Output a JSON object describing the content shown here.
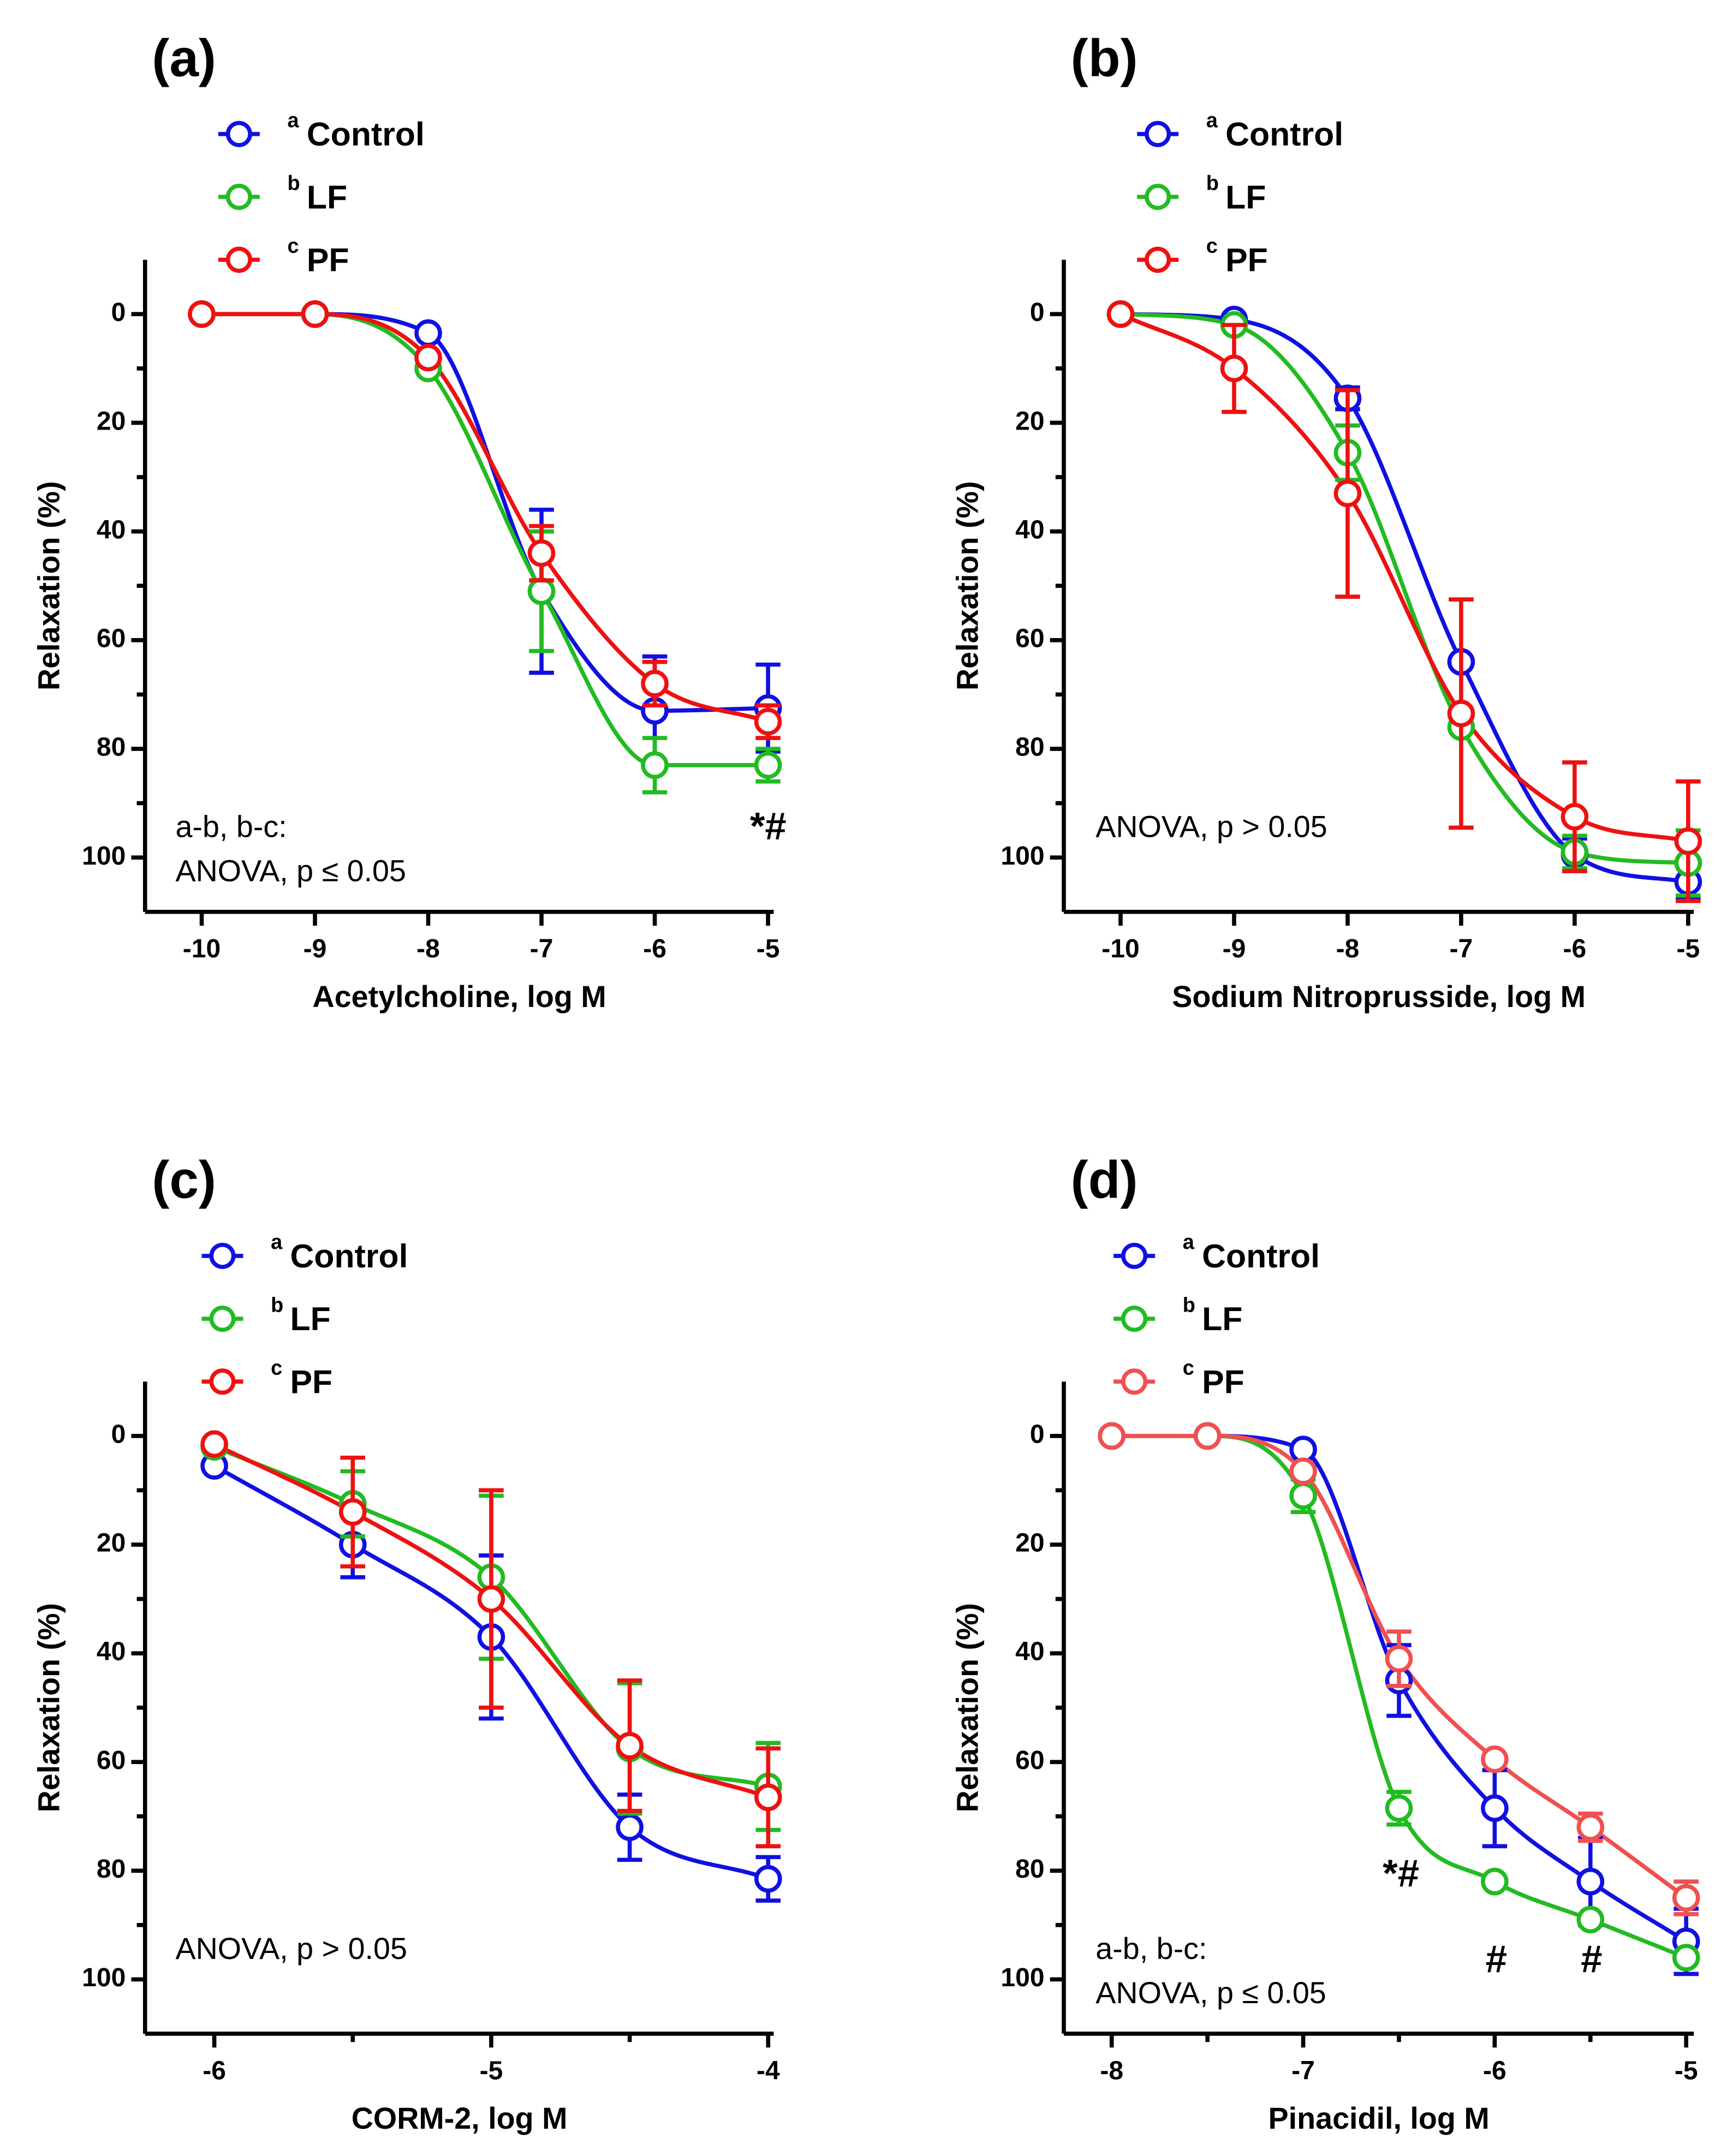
{
  "chart_data": [
    {
      "type": "line",
      "panel_label": "(a)",
      "x_label": "Acetylcholine, log M",
      "y_label": "Relaxation (%)",
      "x": [
        -10,
        -9,
        -8,
        -7,
        -6,
        -5
      ],
      "xlim": [
        -10.5,
        -4.95
      ],
      "xticks": [
        -10,
        -9,
        -8,
        -7,
        -6,
        -5
      ],
      "xminor_ticks": [],
      "ylim": [
        -10,
        110
      ],
      "y_inverted": true,
      "yticks": [
        0,
        20,
        40,
        60,
        80,
        100
      ],
      "yminor_ticks": [
        10,
        30,
        50,
        70,
        90
      ],
      "series": [
        {
          "tag": "a",
          "name": "Control",
          "color": "#1010e0",
          "values": [
            0,
            0,
            3.5,
            51,
            73,
            72.5
          ],
          "errors": [
            null,
            null,
            null,
            15,
            10,
            8
          ]
        },
        {
          "tag": "b",
          "name": "LF",
          "color": "#22bb22",
          "values": [
            0,
            0,
            10,
            51,
            83,
            83
          ],
          "errors": [
            null,
            null,
            null,
            11,
            5,
            3
          ]
        },
        {
          "tag": "c",
          "name": "PF",
          "color": "#ee1111",
          "values": [
            0,
            0,
            8,
            44,
            68,
            75
          ],
          "errors": [
            null,
            null,
            null,
            5,
            4,
            3
          ]
        }
      ],
      "annotations": [
        "a-b, b-c:",
        "ANOVA, p ≤ 0.05",
        "*#"
      ]
    },
    {
      "type": "line",
      "panel_label": "(b)",
      "x_label": "Sodium Nitroprusside, log M",
      "y_label": "Relaxation (%)",
      "x": [
        -10,
        -9,
        -8,
        -7,
        -6,
        -5
      ],
      "xlim": [
        -10.5,
        -4.95
      ],
      "xticks": [
        -10,
        -9,
        -8,
        -7,
        -6,
        -5
      ],
      "xminor_ticks": [],
      "ylim": [
        -10,
        110
      ],
      "y_inverted": true,
      "yticks": [
        0,
        20,
        40,
        60,
        80,
        100
      ],
      "yminor_ticks": [
        10,
        30,
        50,
        70,
        90
      ],
      "series": [
        {
          "tag": "a",
          "name": "Control",
          "color": "#1010e0",
          "values": [
            0,
            1,
            15.5,
            64,
            99.5,
            104.5
          ],
          "errors": [
            null,
            null,
            2,
            null,
            3,
            3
          ]
        },
        {
          "tag": "b",
          "name": "LF",
          "color": "#22bb22",
          "values": [
            0,
            2,
            25.5,
            76,
            99,
            101
          ],
          "errors": [
            null,
            null,
            5,
            null,
            3,
            6
          ]
        },
        {
          "tag": "c",
          "name": "PF",
          "color": "#ee1111",
          "values": [
            0,
            10,
            33,
            73.5,
            92.5,
            97
          ],
          "errors": [
            null,
            8,
            19,
            21,
            10,
            11
          ]
        }
      ],
      "annotations": [
        "ANOVA, p > 0.05"
      ]
    },
    {
      "type": "line",
      "panel_label": "(c)",
      "x_label": "CORM-2, log M",
      "y_label": "Relaxation (%)",
      "x": [
        -6,
        -5.5,
        -5,
        -4.5,
        -4
      ],
      "xlim": [
        -6.25,
        -3.98
      ],
      "xticks": [
        -6,
        -5,
        -4
      ],
      "xminor_ticks": [
        -5.5,
        -4.5
      ],
      "ylim": [
        -10,
        110
      ],
      "y_inverted": true,
      "yticks": [
        0,
        20,
        40,
        60,
        80,
        100
      ],
      "yminor_ticks": [
        10,
        30,
        50,
        70,
        90
      ],
      "series": [
        {
          "tag": "a",
          "name": "Control",
          "color": "#1010e0",
          "values": [
            5.5,
            20,
            37,
            72,
            81.5
          ],
          "errors": [
            null,
            6,
            15,
            6,
            4
          ]
        },
        {
          "tag": "b",
          "name": "LF",
          "color": "#22bb22",
          "values": [
            2,
            12.5,
            26,
            57.5,
            64.5
          ],
          "errors": [
            null,
            6,
            15,
            12,
            8
          ]
        },
        {
          "tag": "c",
          "name": "PF",
          "color": "#ee1111",
          "values": [
            1.5,
            14,
            30,
            57,
            66.5
          ],
          "errors": [
            null,
            10,
            20,
            12,
            9
          ]
        }
      ],
      "annotations": [
        "ANOVA, p > 0.05"
      ]
    },
    {
      "type": "line",
      "panel_label": "(d)",
      "x_label": "Pinacidil, log M",
      "y_label": "Relaxation (%)",
      "x": [
        -8,
        -7.5,
        -7,
        -6.5,
        -6,
        -5.5,
        -5
      ],
      "xlim": [
        -8.25,
        -4.96
      ],
      "xticks": [
        -8,
        -7,
        -6,
        -5
      ],
      "xminor_ticks": [
        -7.5,
        -6.5,
        -5.5
      ],
      "ylim": [
        -10,
        110
      ],
      "y_inverted": true,
      "yticks": [
        0,
        20,
        40,
        60,
        80,
        100
      ],
      "yminor_ticks": [
        10,
        30,
        50,
        70,
        90
      ],
      "series": [
        {
          "tag": "a",
          "name": "Control",
          "color": "#1010e0",
          "values": [
            0,
            0,
            2.5,
            45,
            68.5,
            82,
            93
          ],
          "errors": [
            null,
            null,
            null,
            6.5,
            7,
            8,
            6
          ]
        },
        {
          "tag": "b",
          "name": "LF",
          "color": "#22bb22",
          "values": [
            0,
            0,
            11,
            68.5,
            82,
            89,
            96
          ],
          "errors": [
            null,
            null,
            3,
            3,
            null,
            null,
            null
          ]
        },
        {
          "tag": "c",
          "name": "PF",
          "color": "#f05050",
          "values": [
            0,
            0,
            6.5,
            41,
            59.5,
            72,
            85
          ],
          "errors": [
            null,
            null,
            null,
            5,
            null,
            2.5,
            3
          ]
        }
      ],
      "annotations": [
        "a-b, b-c:",
        "ANOVA, p ≤ 0.05",
        "*#",
        "#",
        "#"
      ]
    }
  ]
}
